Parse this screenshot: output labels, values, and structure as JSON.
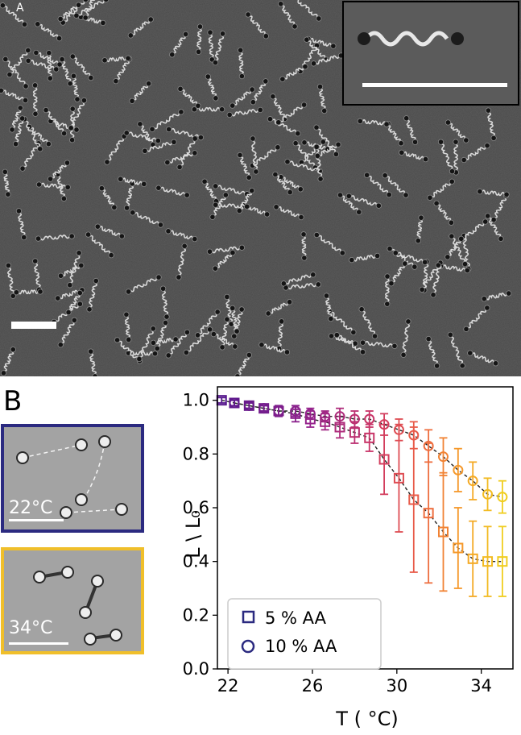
{
  "panelA": {
    "letter": "A",
    "background": "#4a4a4a"
  },
  "panelB": {
    "letter": "B",
    "micrographs": [
      {
        "label": "22°C",
        "border_color": "#2b2a80"
      },
      {
        "label": "34°C",
        "border_color": "#f0bf2a"
      }
    ]
  },
  "chart_data": {
    "type": "line",
    "xlabel": "T ( °C)",
    "ylabel": "L \\ L₀",
    "xlim": [
      21.5,
      35.5
    ],
    "ylim": [
      0.0,
      1.05
    ],
    "xticks": [
      "22",
      "26",
      "30",
      "34"
    ],
    "yticks": [
      "0.0",
      "0.2",
      "0.4",
      "0.6",
      "0.8",
      "1.0"
    ],
    "legend_position": "bottom-left",
    "series": [
      {
        "name": "5 % AA",
        "marker": "square",
        "x": [
          21.7,
          22.3,
          23.0,
          23.7,
          24.4,
          25.2,
          25.9,
          26.6,
          27.3,
          28.0,
          28.7,
          29.4,
          30.1,
          30.8,
          31.5,
          32.2,
          32.9,
          33.6,
          34.3,
          35.0
        ],
        "y": [
          1.0,
          0.99,
          0.98,
          0.97,
          0.96,
          0.95,
          0.93,
          0.92,
          0.9,
          0.88,
          0.86,
          0.78,
          0.71,
          0.63,
          0.58,
          0.51,
          0.45,
          0.41,
          0.4,
          0.4
        ],
        "err": [
          0.01,
          0.01,
          0.01,
          0.01,
          0.02,
          0.03,
          0.03,
          0.03,
          0.04,
          0.04,
          0.05,
          0.13,
          0.2,
          0.27,
          0.26,
          0.22,
          0.15,
          0.14,
          0.13,
          0.13
        ]
      },
      {
        "name": "10 % AA",
        "marker": "circle",
        "x": [
          22.3,
          23.0,
          23.7,
          24.4,
          25.2,
          25.9,
          26.6,
          27.3,
          28.0,
          28.7,
          29.4,
          30.1,
          30.8,
          31.5,
          32.2,
          32.9,
          33.6,
          34.3,
          35.0
        ],
        "y": [
          0.99,
          0.98,
          0.97,
          0.96,
          0.96,
          0.95,
          0.94,
          0.94,
          0.93,
          0.93,
          0.91,
          0.89,
          0.87,
          0.83,
          0.79,
          0.74,
          0.7,
          0.65,
          0.64
        ],
        "err": [
          0.01,
          0.01,
          0.01,
          0.02,
          0.02,
          0.02,
          0.02,
          0.03,
          0.03,
          0.03,
          0.04,
          0.04,
          0.05,
          0.06,
          0.07,
          0.08,
          0.07,
          0.06,
          0.06
        ]
      }
    ],
    "legend": [
      "5 % AA",
      "10 % AA"
    ]
  }
}
